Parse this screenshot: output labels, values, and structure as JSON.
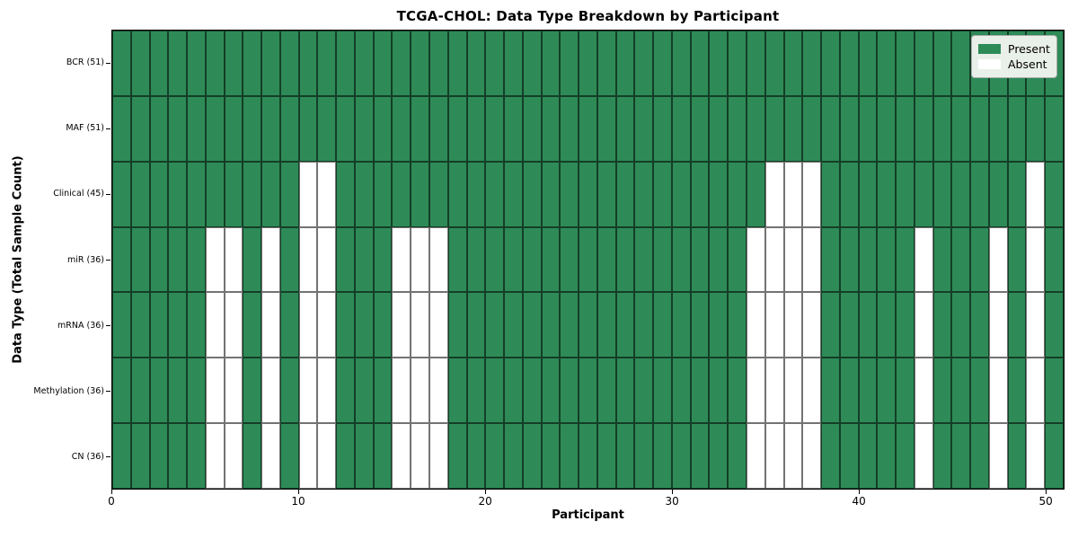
{
  "chart_data": {
    "type": "heatmap",
    "title": "TCGA-CHOL: Data Type Breakdown by Participant",
    "xlabel": "Participant",
    "ylabel": "Data Type (Total Sample Count)",
    "x_ticks": [
      0,
      10,
      20,
      30,
      40,
      50
    ],
    "x_range": [
      0,
      51
    ],
    "n_participants": 51,
    "grid": "cell-borders",
    "rows": [
      {
        "label": "BCR (51)",
        "total": 51,
        "absent_participants": []
      },
      {
        "label": "MAF (51)",
        "total": 51,
        "absent_participants": []
      },
      {
        "label": "Clinical (45)",
        "total": 45,
        "absent_participants": [
          10,
          11,
          35,
          36,
          37,
          49
        ]
      },
      {
        "label": "miR (36)",
        "total": 36,
        "absent_participants": [
          5,
          6,
          8,
          10,
          11,
          15,
          16,
          17,
          34,
          35,
          36,
          37,
          43,
          47,
          49
        ]
      },
      {
        "label": "mRNA (36)",
        "total": 36,
        "absent_participants": [
          5,
          6,
          8,
          10,
          11,
          15,
          16,
          17,
          34,
          35,
          36,
          37,
          43,
          47,
          49
        ]
      },
      {
        "label": "Methylation (36)",
        "total": 36,
        "absent_participants": [
          5,
          6,
          8,
          10,
          11,
          15,
          16,
          17,
          34,
          35,
          36,
          37,
          43,
          47,
          49
        ]
      },
      {
        "label": "CN (36)",
        "total": 36,
        "absent_participants": [
          5,
          6,
          8,
          10,
          11,
          15,
          16,
          17,
          34,
          35,
          36,
          37,
          43,
          47,
          49
        ]
      }
    ],
    "legend": {
      "position": "upper-right",
      "entries": [
        {
          "label": "Present",
          "color": "#2e8b57"
        },
        {
          "label": "Absent",
          "color": "#ffffff"
        }
      ]
    },
    "colors": {
      "present": "#2e8b57",
      "absent": "#ffffff",
      "cell_edge": "rgba(0,0,0,0.55)",
      "spine": "#000000",
      "legend_background": "#e9efe9"
    }
  }
}
